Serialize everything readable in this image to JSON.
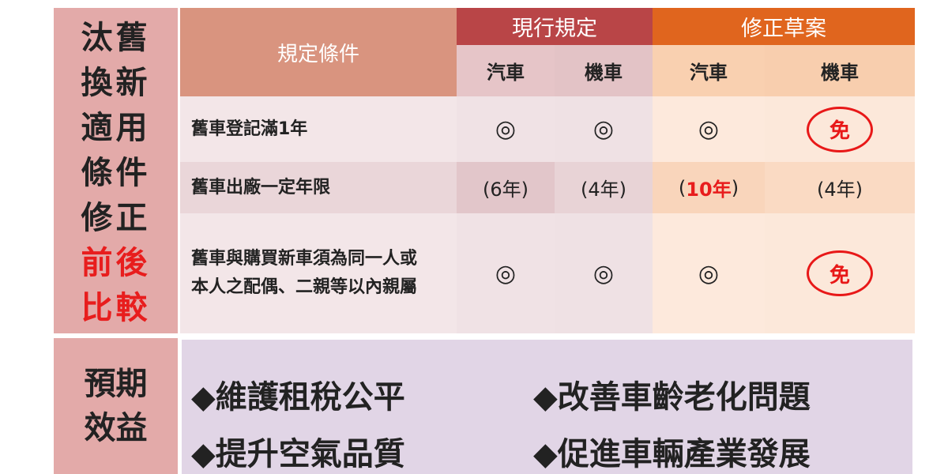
{
  "side_title": {
    "lines": [
      "汰舊",
      "換新",
      "適用",
      "條件",
      "修正"
    ],
    "highlight_lines": [
      "前後",
      "比較"
    ]
  },
  "table": {
    "condition_header": "規定條件",
    "groups": [
      {
        "label": "現行規定",
        "color": "#b94547"
      },
      {
        "label": "修正草案",
        "color": "#e0651e"
      }
    ],
    "subheaders": [
      "汽車",
      "機車",
      "汽車",
      "機車"
    ],
    "rows": [
      {
        "condition": "舊車登記滿1年",
        "cells": [
          "◎",
          "◎",
          "◎",
          "免"
        ]
      },
      {
        "condition": "舊車出廠一定年限",
        "cells": [
          "(6年)",
          "(4年)",
          "(10年)",
          "(4年)"
        ],
        "highlight_cell": {
          "prefix": "(",
          "value": "10年",
          "suffix": ")"
        }
      },
      {
        "condition": "舊車與購買新車須為同一人或本人之配偶、二親等以內親屬",
        "cells": [
          "◎",
          "◎",
          "◎",
          "免"
        ]
      }
    ]
  },
  "benefits": {
    "title_lines": [
      "預期",
      "效益"
    ],
    "items": [
      "◆維護租稅公平",
      "◆改善車齡老化問題",
      "◆提升空氣品質",
      "◆促進車輛產業發展"
    ]
  }
}
